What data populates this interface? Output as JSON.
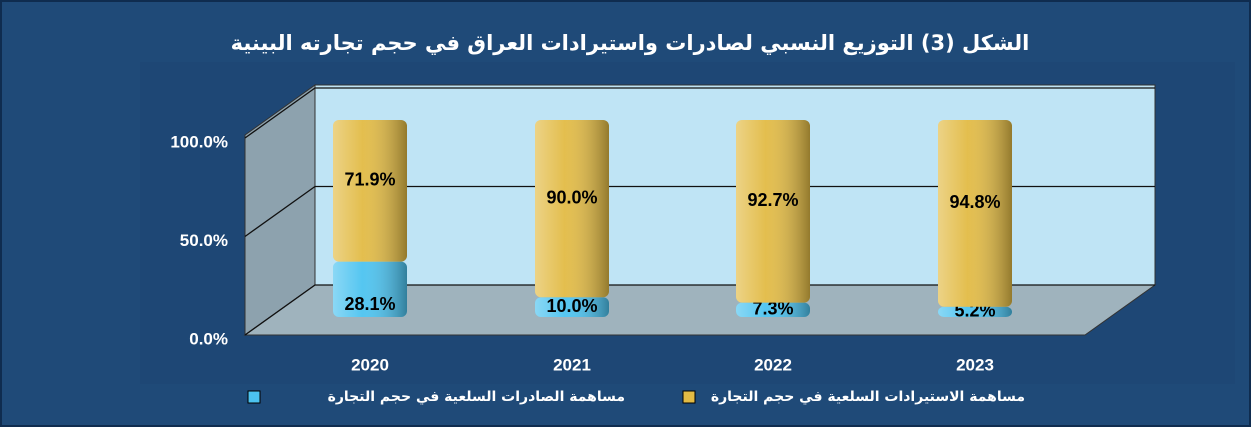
{
  "chart_data": {
    "type": "bar",
    "stacked": true,
    "title": "الشكل (3) التوزيع النسبي لصادرات واستيرادات العراق في حجم تجارته البينية",
    "categories": [
      "2020",
      "2021",
      "2022",
      "2023"
    ],
    "series": [
      {
        "name": "مساهمة الصادرات السلعية في حجم التجارة",
        "color": "#4cc3f0",
        "values": [
          28.1,
          10.0,
          7.3,
          5.2
        ],
        "value_labels": [
          "28.1%",
          "10.0%",
          "7.3%",
          "5.2%"
        ]
      },
      {
        "name": "مساهمة الاستيرادات السلعية في حجم التجارة",
        "color": "#e2bb45",
        "values": [
          71.9,
          90.0,
          92.7,
          94.8
        ],
        "value_labels": [
          "71.9%",
          "90.0%",
          "92.7%",
          "94.8%"
        ]
      }
    ],
    "ylim": [
      0,
      100
    ],
    "yticks": [
      {
        "value": 0,
        "label": "0.0%"
      },
      {
        "value": 50,
        "label": "50.0%"
      },
      {
        "value": 100,
        "label": "100.0%"
      }
    ],
    "grid": true
  }
}
